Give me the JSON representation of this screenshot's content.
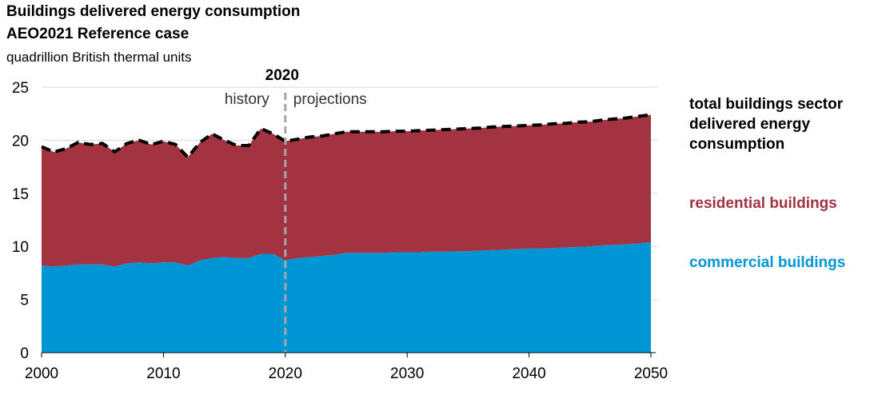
{
  "title": "Buildings delivered energy consumption",
  "subtitle": "AEO2021 Reference case",
  "units": "quadrillion British thermal units",
  "colors": {
    "commercial": "#0096d6",
    "residential": "#a33341",
    "total_line": "#000000",
    "divider": "#a6a6a6"
  },
  "chart_data": {
    "type": "area",
    "stacked": true,
    "x_range": [
      2000,
      2050
    ],
    "ylim": [
      0,
      25
    ],
    "y_ticks": [
      "0",
      "5",
      "10",
      "15",
      "20",
      "25"
    ],
    "x_ticks": [
      "2000",
      "2010",
      "2020",
      "2030",
      "2040",
      "2050"
    ],
    "grid": "horizontal",
    "divider": {
      "year": 2020,
      "label": "2020",
      "left_label": "history",
      "right_label": "projections"
    },
    "x": [
      2000,
      2001,
      2002,
      2003,
      2004,
      2005,
      2006,
      2007,
      2008,
      2009,
      2010,
      2011,
      2012,
      2013,
      2014,
      2015,
      2016,
      2017,
      2018,
      2019,
      2020,
      2021,
      2022,
      2023,
      2024,
      2025,
      2026,
      2027,
      2028,
      2029,
      2030,
      2031,
      2032,
      2033,
      2034,
      2035,
      2036,
      2037,
      2038,
      2039,
      2040,
      2041,
      2042,
      2043,
      2044,
      2045,
      2046,
      2047,
      2048,
      2049,
      2050
    ],
    "series": [
      {
        "name": "commercial buildings",
        "values": [
          8.2,
          8.1,
          8.2,
          8.3,
          8.3,
          8.3,
          8.1,
          8.4,
          8.5,
          8.4,
          8.5,
          8.5,
          8.2,
          8.7,
          8.9,
          9.0,
          8.9,
          8.9,
          9.3,
          9.3,
          8.7,
          8.9,
          9.0,
          9.1,
          9.2,
          9.4,
          9.4,
          9.4,
          9.4,
          9.45,
          9.45,
          9.45,
          9.5,
          9.5,
          9.55,
          9.55,
          9.6,
          9.65,
          9.7,
          9.75,
          9.8,
          9.8,
          9.85,
          9.9,
          9.95,
          10.0,
          10.1,
          10.15,
          10.2,
          10.3,
          10.4
        ]
      },
      {
        "name": "residential buildings",
        "values": [
          11.2,
          10.8,
          11.0,
          11.5,
          11.3,
          11.4,
          10.8,
          11.3,
          11.5,
          11.2,
          11.4,
          11.1,
          10.2,
          11.1,
          11.7,
          11.0,
          10.6,
          10.6,
          11.8,
          11.3,
          11.2,
          11.2,
          11.3,
          11.3,
          11.4,
          11.4,
          11.4,
          11.4,
          11.4,
          11.4,
          11.4,
          11.45,
          11.45,
          11.5,
          11.5,
          11.55,
          11.55,
          11.6,
          11.6,
          11.6,
          11.6,
          11.65,
          11.7,
          11.7,
          11.75,
          11.75,
          11.8,
          11.85,
          11.9,
          11.95,
          12.0
        ]
      }
    ],
    "total_series_name": "total buildings sector delivered energy consumption"
  }
}
